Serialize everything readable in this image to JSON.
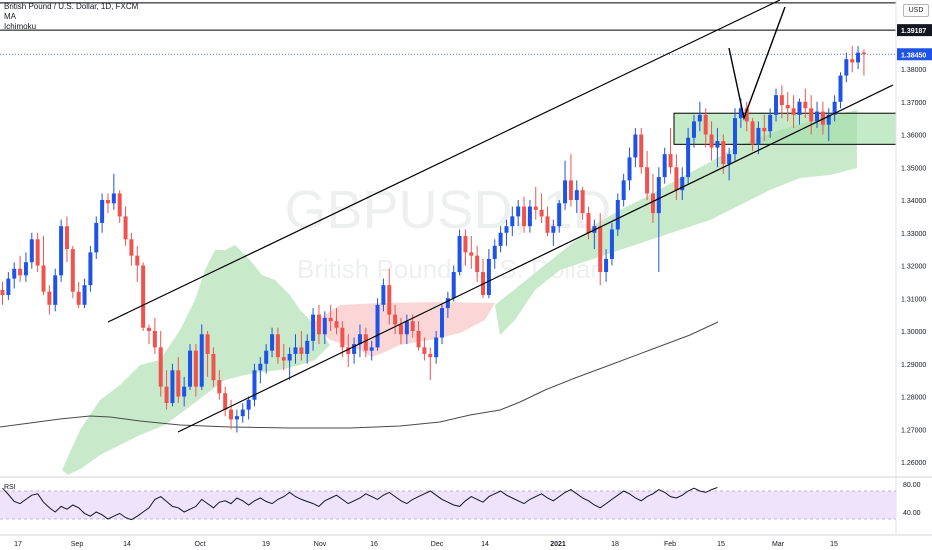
{
  "header": {
    "symbol_line": "British Pound / U.S. Dollar, 1D, FXCM",
    "indicator_ma": "MA",
    "indicator_ichimoku": "Ichimoku"
  },
  "watermark": {
    "ticker": "GBPUSD, 1D",
    "name": "British Pound / U.S. Dollar"
  },
  "currency_badge": "USD",
  "price_axis": {
    "ticks": [
      "1.38000",
      "1.37000",
      "1.36000",
      "1.35000",
      "1.34000",
      "1.33000",
      "1.32000",
      "1.31000",
      "1.30000",
      "1.29000",
      "1.28000",
      "1.27000",
      "1.26000"
    ],
    "marker_upper_label": "1.39187",
    "marker_current_label": "1.38450",
    "marker_current_color": "#1e53e5",
    "marker_upper_color": "#131722"
  },
  "time_axis": {
    "ticks": [
      "17",
      "Sep",
      "14",
      "Oct",
      "19",
      "Nov",
      "16",
      "Dec",
      "14",
      "2021",
      "18",
      "Feb",
      "15",
      "Mar",
      "15"
    ]
  },
  "rsi": {
    "label": "RSI",
    "ticks": [
      "80.00",
      "40.00"
    ]
  },
  "colors": {
    "up": "#1e53e5",
    "down": "#ef5350",
    "cloud_bull": "#c9e9cb",
    "cloud_bear": "#fbd6d6",
    "zone": "#a5dea9",
    "rsi_band": "#eee3fb",
    "rsi_line": "#131722",
    "ma_line": "#4a4a4a",
    "channel": "#000000"
  },
  "chart_data": {
    "type": "candlestick",
    "ylim": [
      1.255,
      1.405
    ],
    "upper_level": 1.39187,
    "current_price": 1.3845,
    "top_level": 1.4002,
    "y_ticks": [
      1.38,
      1.37,
      1.36,
      1.35,
      1.34,
      1.33,
      1.32,
      1.31,
      1.3,
      1.29,
      1.28,
      1.27,
      1.26
    ],
    "ohlc": [
      [
        1.3125,
        1.315,
        1.308,
        1.311
      ],
      [
        1.311,
        1.318,
        1.3095,
        1.316
      ],
      [
        1.316,
        1.321,
        1.313,
        1.319
      ],
      [
        1.319,
        1.323,
        1.315,
        1.317
      ],
      [
        1.317,
        1.324,
        1.315,
        1.321
      ],
      [
        1.321,
        1.33,
        1.319,
        1.328
      ],
      [
        1.328,
        1.33,
        1.318,
        1.32
      ],
      [
        1.32,
        1.329,
        1.311,
        1.312
      ],
      [
        1.312,
        1.314,
        1.305,
        1.308
      ],
      [
        1.308,
        1.319,
        1.306,
        1.317
      ],
      [
        1.317,
        1.334,
        1.315,
        1.332
      ],
      [
        1.332,
        1.335,
        1.321,
        1.325
      ],
      [
        1.325,
        1.326,
        1.31,
        1.312
      ],
      [
        1.312,
        1.315,
        1.307,
        1.308
      ],
      [
        1.308,
        1.316,
        1.307,
        1.314
      ],
      [
        1.314,
        1.326,
        1.312,
        1.324
      ],
      [
        1.324,
        1.335,
        1.322,
        1.333
      ],
      [
        1.333,
        1.342,
        1.33,
        1.34
      ],
      [
        1.34,
        1.342,
        1.336,
        1.339
      ],
      [
        1.339,
        1.348,
        1.337,
        1.342
      ],
      [
        1.342,
        1.343,
        1.333,
        1.335
      ],
      [
        1.335,
        1.338,
        1.326,
        1.328
      ],
      [
        1.328,
        1.33,
        1.32,
        1.323
      ],
      [
        1.323,
        1.326,
        1.315,
        1.32
      ],
      [
        1.32,
        1.321,
        1.3,
        1.301
      ],
      [
        1.301,
        1.302,
        1.296,
        1.3
      ],
      [
        1.3,
        1.304,
        1.293,
        1.295
      ],
      [
        1.295,
        1.3,
        1.28,
        1.283
      ],
      [
        1.283,
        1.288,
        1.276,
        1.278
      ],
      [
        1.278,
        1.29,
        1.277,
        1.288
      ],
      [
        1.288,
        1.292,
        1.278,
        1.28
      ],
      [
        1.28,
        1.286,
        1.277,
        1.283
      ],
      [
        1.283,
        1.296,
        1.282,
        1.294
      ],
      [
        1.294,
        1.296,
        1.28,
        1.283
      ],
      [
        1.283,
        1.302,
        1.282,
        1.299
      ],
      [
        1.299,
        1.3,
        1.286,
        1.293
      ],
      [
        1.293,
        1.295,
        1.283,
        1.285
      ],
      [
        1.285,
        1.288,
        1.279,
        1.281
      ],
      [
        1.281,
        1.283,
        1.274,
        1.276
      ],
      [
        1.276,
        1.279,
        1.27,
        1.273
      ],
      [
        1.273,
        1.276,
        1.269,
        1.274
      ],
      [
        1.274,
        1.278,
        1.272,
        1.276
      ],
      [
        1.276,
        1.28,
        1.273,
        1.279
      ],
      [
        1.279,
        1.29,
        1.277,
        1.288
      ],
      [
        1.288,
        1.292,
        1.284,
        1.29
      ],
      [
        1.29,
        1.296,
        1.287,
        1.294
      ],
      [
        1.294,
        1.301,
        1.292,
        1.299
      ],
      [
        1.299,
        1.301,
        1.29,
        1.292
      ],
      [
        1.292,
        1.296,
        1.288,
        1.291
      ],
      [
        1.291,
        1.295,
        1.285,
        1.293
      ],
      [
        1.293,
        1.299,
        1.29,
        1.295
      ],
      [
        1.295,
        1.3,
        1.291,
        1.293
      ],
      [
        1.293,
        1.299,
        1.29,
        1.297
      ],
      [
        1.297,
        1.307,
        1.294,
        1.305
      ],
      [
        1.305,
        1.308,
        1.296,
        1.299
      ],
      [
        1.299,
        1.306,
        1.296,
        1.304
      ],
      [
        1.304,
        1.308,
        1.3,
        1.303
      ],
      [
        1.303,
        1.307,
        1.299,
        1.301
      ],
      [
        1.301,
        1.303,
        1.292,
        1.295
      ],
      [
        1.295,
        1.299,
        1.289,
        1.293
      ],
      [
        1.293,
        1.298,
        1.29,
        1.296
      ],
      [
        1.296,
        1.302,
        1.292,
        1.299
      ],
      [
        1.299,
        1.301,
        1.292,
        1.294
      ],
      [
        1.294,
        1.297,
        1.291,
        1.295
      ],
      [
        1.295,
        1.31,
        1.294,
        1.308
      ],
      [
        1.308,
        1.316,
        1.306,
        1.314
      ],
      [
        1.314,
        1.319,
        1.302,
        1.305
      ],
      [
        1.305,
        1.308,
        1.299,
        1.302
      ],
      [
        1.302,
        1.304,
        1.296,
        1.299
      ],
      [
        1.299,
        1.305,
        1.296,
        1.303
      ],
      [
        1.303,
        1.305,
        1.298,
        1.3
      ],
      [
        1.3,
        1.303,
        1.294,
        1.295
      ],
      [
        1.295,
        1.298,
        1.291,
        1.293
      ],
      [
        1.293,
        1.295,
        1.285,
        1.292
      ],
      [
        1.292,
        1.3,
        1.29,
        1.298
      ],
      [
        1.298,
        1.308,
        1.296,
        1.307
      ],
      [
        1.307,
        1.312,
        1.304,
        1.31
      ],
      [
        1.31,
        1.32,
        1.309,
        1.318
      ],
      [
        1.318,
        1.331,
        1.317,
        1.329
      ],
      [
        1.329,
        1.331,
        1.32,
        1.324
      ],
      [
        1.324,
        1.329,
        1.319,
        1.323
      ],
      [
        1.323,
        1.326,
        1.315,
        1.318
      ],
      [
        1.318,
        1.322,
        1.31,
        1.311
      ],
      [
        1.311,
        1.325,
        1.31,
        1.322
      ],
      [
        1.322,
        1.328,
        1.319,
        1.326
      ],
      [
        1.326,
        1.332,
        1.324,
        1.33
      ],
      [
        1.33,
        1.334,
        1.326,
        1.332
      ],
      [
        1.332,
        1.338,
        1.329,
        1.335
      ],
      [
        1.335,
        1.34,
        1.332,
        1.338
      ],
      [
        1.338,
        1.341,
        1.33,
        1.332
      ],
      [
        1.332,
        1.34,
        1.33,
        1.338
      ],
      [
        1.338,
        1.344,
        1.334,
        1.337
      ],
      [
        1.337,
        1.342,
        1.333,
        1.335
      ],
      [
        1.335,
        1.338,
        1.329,
        1.33
      ],
      [
        1.33,
        1.334,
        1.326,
        1.332
      ],
      [
        1.332,
        1.34,
        1.33,
        1.339
      ],
      [
        1.339,
        1.352,
        1.337,
        1.346
      ],
      [
        1.346,
        1.354,
        1.338,
        1.34
      ],
      [
        1.34,
        1.346,
        1.336,
        1.343
      ],
      [
        1.343,
        1.344,
        1.334,
        1.336
      ],
      [
        1.336,
        1.338,
        1.328,
        1.33
      ],
      [
        1.33,
        1.334,
        1.325,
        1.332
      ],
      [
        1.332,
        1.336,
        1.314,
        1.318
      ],
      [
        1.318,
        1.325,
        1.315,
        1.322
      ],
      [
        1.322,
        1.333,
        1.32,
        1.331
      ],
      [
        1.331,
        1.342,
        1.329,
        1.34
      ],
      [
        1.34,
        1.348,
        1.338,
        1.346
      ],
      [
        1.346,
        1.356,
        1.343,
        1.353
      ],
      [
        1.353,
        1.362,
        1.35,
        1.36
      ],
      [
        1.36,
        1.362,
        1.348,
        1.35
      ],
      [
        1.35,
        1.355,
        1.34,
        1.342
      ],
      [
        1.342,
        1.348,
        1.333,
        1.336
      ],
      [
        1.336,
        1.35,
        1.318,
        1.347
      ],
      [
        1.347,
        1.356,
        1.345,
        1.354
      ],
      [
        1.354,
        1.362,
        1.348,
        1.35
      ],
      [
        1.35,
        1.354,
        1.34,
        1.343
      ],
      [
        1.343,
        1.35,
        1.34,
        1.347
      ],
      [
        1.347,
        1.362,
        1.345,
        1.359
      ],
      [
        1.359,
        1.366,
        1.356,
        1.364
      ],
      [
        1.364,
        1.37,
        1.361,
        1.366
      ],
      [
        1.366,
        1.368,
        1.356,
        1.36
      ],
      [
        1.36,
        1.364,
        1.352,
        1.356
      ],
      [
        1.356,
        1.362,
        1.35,
        1.358
      ],
      [
        1.358,
        1.36,
        1.348,
        1.351
      ],
      [
        1.351,
        1.356,
        1.346,
        1.354
      ],
      [
        1.354,
        1.368,
        1.352,
        1.365
      ],
      [
        1.365,
        1.371,
        1.362,
        1.368
      ],
      [
        1.368,
        1.37,
        1.361,
        1.364
      ],
      [
        1.364,
        1.365,
        1.355,
        1.357
      ],
      [
        1.357,
        1.364,
        1.354,
        1.362
      ],
      [
        1.362,
        1.366,
        1.358,
        1.361
      ],
      [
        1.361,
        1.368,
        1.359,
        1.366
      ],
      [
        1.366,
        1.374,
        1.364,
        1.372
      ],
      [
        1.372,
        1.375,
        1.365,
        1.369
      ],
      [
        1.369,
        1.373,
        1.364,
        1.368
      ],
      [
        1.368,
        1.372,
        1.362,
        1.366
      ],
      [
        1.366,
        1.371,
        1.363,
        1.37
      ],
      [
        1.37,
        1.374,
        1.365,
        1.368
      ],
      [
        1.368,
        1.372,
        1.36,
        1.364
      ],
      [
        1.364,
        1.37,
        1.362,
        1.367
      ],
      [
        1.367,
        1.37,
        1.36,
        1.363
      ],
      [
        1.363,
        1.368,
        1.358,
        1.366
      ],
      [
        1.366,
        1.372,
        1.364,
        1.37
      ],
      [
        1.37,
        1.379,
        1.368,
        1.378
      ],
      [
        1.378,
        1.385,
        1.376,
        1.383
      ],
      [
        1.383,
        1.387,
        1.379,
        1.382
      ],
      [
        1.382,
        1.387,
        1.38,
        1.385
      ],
      [
        1.385,
        1.386,
        1.378,
        1.3845
      ]
    ],
    "rsi_values": [
      74,
      65,
      55,
      52,
      58,
      64,
      66,
      54,
      46,
      40,
      48,
      44,
      50,
      46,
      38,
      34,
      40,
      36,
      30,
      34,
      38,
      32,
      29,
      34,
      40,
      46,
      58,
      62,
      55,
      48,
      46,
      40,
      44,
      48,
      58,
      52,
      46,
      54,
      56,
      52,
      60,
      56,
      50,
      56,
      60,
      55,
      52,
      58,
      62,
      68,
      62,
      58,
      55,
      52,
      48,
      56,
      60,
      64,
      58,
      52,
      56,
      60,
      66,
      62,
      58,
      64,
      68,
      62,
      56,
      52,
      58,
      62,
      66,
      70,
      64,
      58,
      54,
      50,
      48,
      56,
      62,
      58,
      54,
      62,
      66,
      70,
      64,
      60,
      56,
      52,
      58,
      62,
      66,
      60,
      56,
      62,
      68,
      72,
      66,
      60,
      56,
      50,
      46,
      52,
      58,
      64,
      70,
      66,
      60,
      56,
      62,
      66,
      72,
      68,
      62,
      60,
      64,
      70,
      74,
      70,
      68,
      72,
      75
    ]
  }
}
